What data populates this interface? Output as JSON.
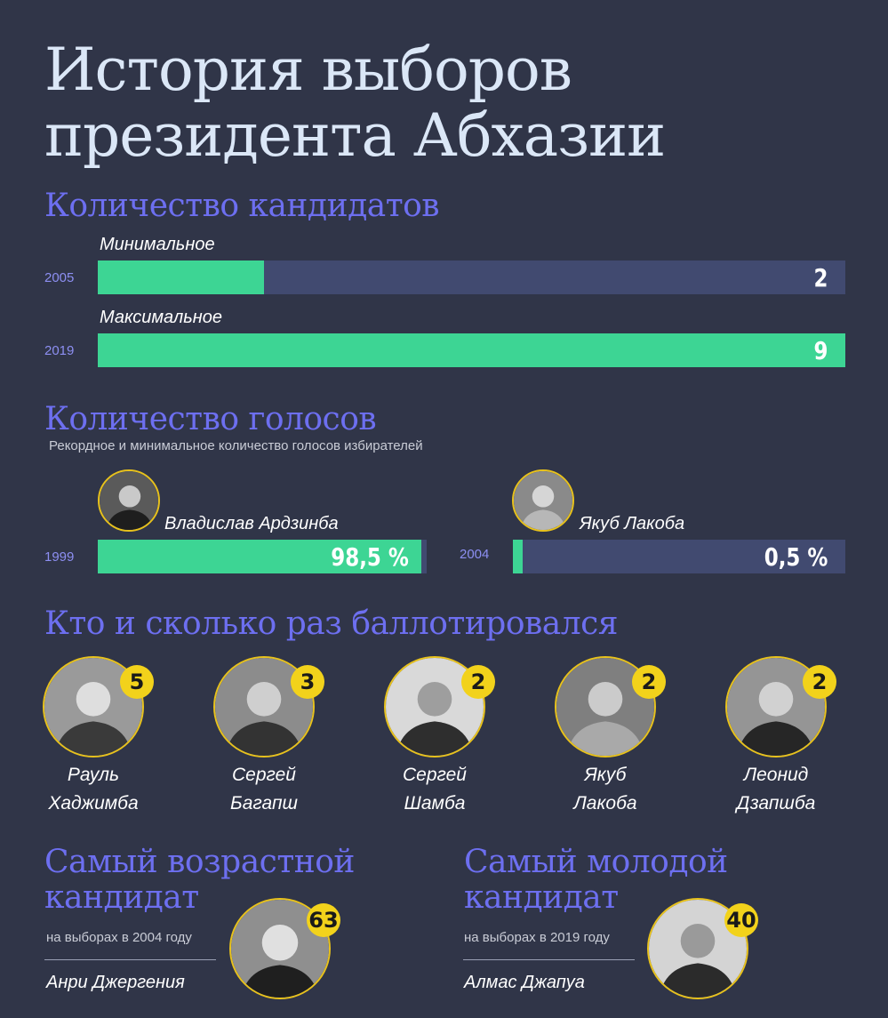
{
  "title_line1": "История выборов",
  "title_line2": "президента Абхазии",
  "candidates_count": {
    "heading": "Количество кандидатов",
    "max_scale": 9,
    "rows": [
      {
        "label": "Минимальное",
        "year": "2005",
        "value": 2,
        "display": "2"
      },
      {
        "label": "Максимальное",
        "year": "2019",
        "value": 9,
        "display": "9"
      }
    ]
  },
  "votes": {
    "heading": "Количество голосов",
    "subtitle": "Рекордное и минимальное количество голосов избирателей",
    "rows": [
      {
        "name": "Владислав Ардзинба",
        "year": "1999",
        "percent": 98.5,
        "display": "98,5 %"
      },
      {
        "name": "Якуб Лакоба",
        "year": "2004",
        "percent": 0.5,
        "display": "0,5 %"
      }
    ]
  },
  "runs": {
    "heading": "Кто и сколько раз баллотировался",
    "people": [
      {
        "first": "Рауль",
        "last": "Хаджимба",
        "count": "5"
      },
      {
        "first": "Сергей",
        "last": "Багапш",
        "count": "3"
      },
      {
        "first": "Сергей",
        "last": "Шамба",
        "count": "2"
      },
      {
        "first": "Якуб",
        "last": "Лакоба",
        "count": "2"
      },
      {
        "first": "Леонид",
        "last": "Дзапшба",
        "count": "2"
      }
    ]
  },
  "oldest": {
    "heading_line1": "Самый возрастной",
    "heading_line2": "кандидат",
    "note": "на выборах в 2004 году",
    "name": "Анри Джергения",
    "age": "63"
  },
  "youngest": {
    "heading_line1": "Самый молодой",
    "heading_line2": "кандидат",
    "note": "на выборах в 2019 году",
    "name": "Алмас Джапуа",
    "age": "40"
  },
  "chart_data": [
    {
      "type": "bar",
      "title": "Количество кандидатов",
      "categories": [
        "2005",
        "2019"
      ],
      "values": [
        2,
        9
      ],
      "xlim": [
        0,
        9
      ]
    },
    {
      "type": "bar",
      "title": "Количество голосов",
      "categories": [
        "1999",
        "2004"
      ],
      "values": [
        98.5,
        0.5
      ],
      "xlim": [
        0,
        100
      ]
    },
    {
      "type": "bar",
      "title": "Кто и сколько раз баллотировался",
      "categories": [
        "Рауль Хаджимба",
        "Сергей Багапш",
        "Сергей Шамба",
        "Якуб Лакоба",
        "Леонид Дзапшба"
      ],
      "values": [
        5,
        3,
        2,
        2,
        2
      ]
    }
  ],
  "colors": {
    "background": "#303548",
    "bar_fill": "#3dd594",
    "bar_track": "#414a70",
    "heading": "#6d6ff0",
    "badge": "#f2d21b"
  }
}
